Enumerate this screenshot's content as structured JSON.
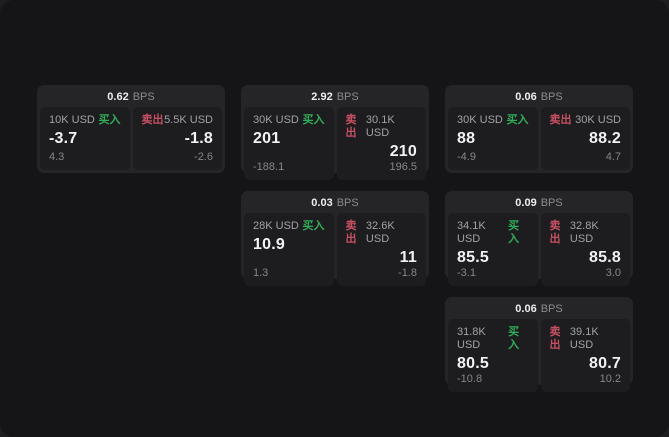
{
  "page": {
    "bps_unit_label": "BPS",
    "buy_label": "买入",
    "sell_label": "卖出"
  },
  "colors": {
    "buy_green": "#2fae59",
    "sell_red": "#c85062",
    "window_background": "#151517",
    "card_background": "#252527",
    "panel_background": "#1d1d1f"
  },
  "cards": [
    {
      "bps": "0.62",
      "buy": {
        "amount": "10K USD",
        "price": "-3.7",
        "delta": "4.3"
      },
      "sell": {
        "amount": "5.5K USD",
        "price": "-1.8",
        "delta": "-2.6"
      }
    },
    {
      "bps": "2.92",
      "buy": {
        "amount": "30K USD",
        "price": "201",
        "delta": "-188.1"
      },
      "sell": {
        "amount": "30.1K USD",
        "price": "210",
        "delta": "196.5"
      }
    },
    {
      "bps": "0.06",
      "buy": {
        "amount": "30K USD",
        "price": "88",
        "delta": "-4.9"
      },
      "sell": {
        "amount": "30K USD",
        "price": "88.2",
        "delta": "4.7"
      }
    },
    {
      "bps": "0.03",
      "buy": {
        "amount": "28K USD",
        "price": "10.9",
        "delta": "1.3"
      },
      "sell": {
        "amount": "32.6K USD",
        "price": "11",
        "delta": "-1.8"
      }
    },
    {
      "bps": "0.09",
      "buy": {
        "amount": "34.1K USD",
        "price": "85.5",
        "delta": "-3.1"
      },
      "sell": {
        "amount": "32.8K USD",
        "price": "85.8",
        "delta": "3.0"
      }
    },
    {
      "bps": "0.06",
      "buy": {
        "amount": "31.8K USD",
        "price": "80.5",
        "delta": "-10.8"
      },
      "sell": {
        "amount": "39.1K USD",
        "price": "80.7",
        "delta": "10.2"
      }
    }
  ]
}
